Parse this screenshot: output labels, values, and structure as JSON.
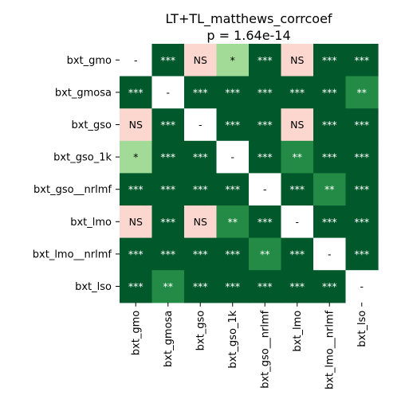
{
  "chart_data": {
    "type": "heatmap",
    "title": "LT+TL_matthews_corrcoef",
    "subtitle": "p = 1.64e-14",
    "row_labels": [
      "bxt_gmo",
      "bxt_gmosa",
      "bxt_gso",
      "bxt_gso_1k",
      "bxt_gso__nrlmf",
      "bxt_lmo",
      "bxt_lmo__nrlmf",
      "bxt_lso"
    ],
    "col_labels": [
      "bxt_gmo",
      "bxt_gmosa",
      "bxt_gso",
      "bxt_gso_1k",
      "bxt_gso__nrlmf",
      "bxt_lmo",
      "bxt_lmo__nrlmf",
      "bxt_lso"
    ],
    "cells": [
      [
        "-",
        "***",
        "NS",
        "*",
        "***",
        "NS",
        "***",
        "***"
      ],
      [
        "***",
        "-",
        "***",
        "***",
        "***",
        "***",
        "***",
        "**"
      ],
      [
        "NS",
        "***",
        "-",
        "***",
        "***",
        "NS",
        "***",
        "***"
      ],
      [
        "*",
        "***",
        "***",
        "-",
        "***",
        "**",
        "***",
        "***"
      ],
      [
        "***",
        "***",
        "***",
        "***",
        "-",
        "***",
        "**",
        "***"
      ],
      [
        "NS",
        "***",
        "NS",
        "**",
        "***",
        "-",
        "***",
        "***"
      ],
      [
        "***",
        "***",
        "***",
        "***",
        "**",
        "***",
        "-",
        "***"
      ],
      [
        "***",
        "**",
        "***",
        "***",
        "***",
        "***",
        "***",
        "-"
      ]
    ],
    "color_map": {
      "-": "#ffffff",
      "NS": "#fbd7d0",
      "*": "#a1db97",
      "**": "#238b45",
      "***": "#00582b"
    },
    "text_color_map": {
      "-": "#000000",
      "NS": "#000000",
      "*": "#000000",
      "**": "#ffffff",
      "***": "#ffffff"
    },
    "legend": "none"
  }
}
